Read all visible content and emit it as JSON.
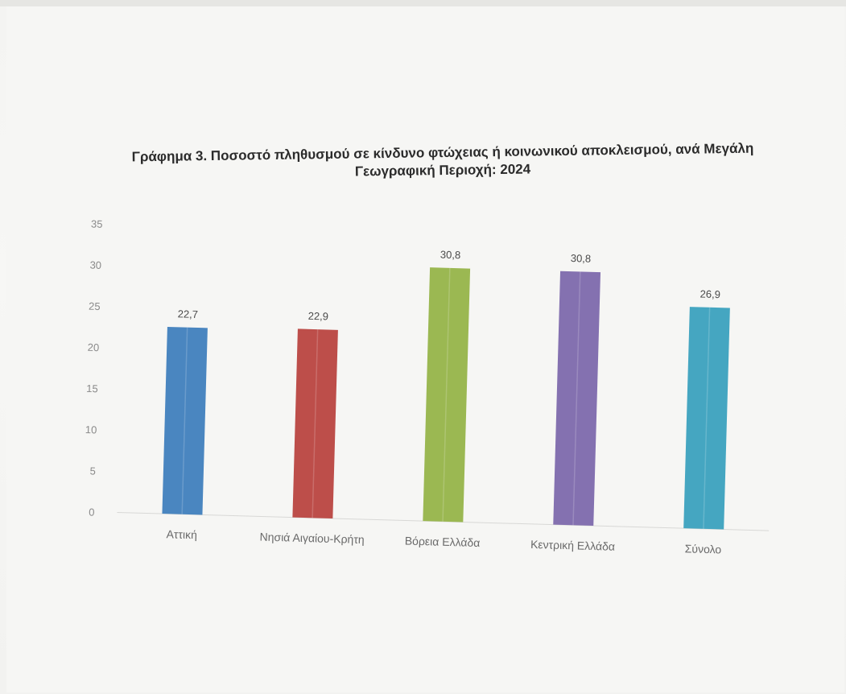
{
  "chart_data": {
    "type": "bar",
    "title_line1": "Γράφημα 3. Ποσοστό πληθυσμού σε κίνδυνο φτώχειας ή κοινωνικού αποκλεισμού, ανά  Μεγάλη",
    "title_line2": "Γεωγραφική Περιοχή: 2024",
    "categories": [
      "Αττική",
      "Νησιά Αιγαίου-Κρήτη",
      "Βόρεια Ελλάδα",
      "Κεντρική Ελλάδα",
      "Σύνολο"
    ],
    "values": [
      22.7,
      22.9,
      30.8,
      30.8,
      26.9
    ],
    "value_labels": [
      "22,7",
      "22,9",
      "30,8",
      "30,8",
      "26,9"
    ],
    "colors": [
      "#4a86c0",
      "#bd4e4a",
      "#9bb852",
      "#8471b0",
      "#45a6c1"
    ],
    "yticks": [
      "0",
      "5",
      "10",
      "15",
      "20",
      "25",
      "30",
      "35"
    ],
    "ylim": [
      0,
      35
    ],
    "xlabel": "",
    "ylabel": "",
    "grid": false,
    "legend": "none"
  }
}
